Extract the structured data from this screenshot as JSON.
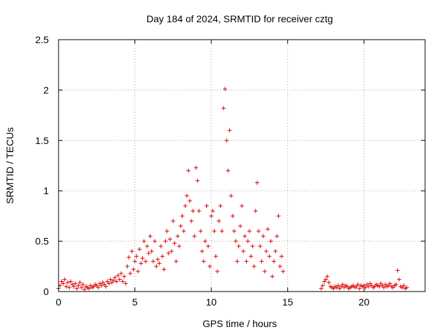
{
  "chart_data": {
    "type": "scatter",
    "title": "Day 184 of 2024, SRMTID for receiver cztg",
    "xlabel": "GPS time / hours",
    "ylabel": "SRMTID / TECUs",
    "xlim": [
      0,
      24
    ],
    "ylim": [
      0,
      2.5
    ],
    "xticks": [
      0,
      5,
      10,
      15,
      20
    ],
    "yticks": [
      0,
      0.5,
      1,
      1.5,
      2,
      2.5
    ],
    "grid": true,
    "marker": "plus",
    "color": "#e00000",
    "series": [
      {
        "name": "SRMTID",
        "x": [
          0.0,
          0.1,
          0.2,
          0.3,
          0.4,
          0.5,
          0.6,
          0.7,
          0.8,
          0.9,
          1.0,
          1.1,
          1.2,
          1.3,
          1.4,
          1.5,
          1.6,
          1.7,
          1.8,
          1.9,
          2.0,
          2.1,
          2.2,
          2.3,
          2.4,
          2.5,
          2.6,
          2.7,
          2.8,
          2.9,
          3.0,
          3.1,
          3.2,
          3.3,
          3.4,
          3.5,
          3.6,
          3.7,
          3.8,
          3.9,
          4.0,
          4.1,
          4.2,
          4.3,
          4.4,
          4.5,
          4.6,
          4.7,
          4.8,
          4.9,
          5.0,
          5.1,
          5.2,
          5.3,
          5.4,
          5.5,
          5.6,
          5.7,
          5.8,
          5.9,
          6.0,
          6.1,
          6.2,
          6.3,
          6.4,
          6.5,
          6.6,
          6.7,
          6.8,
          6.9,
          7.0,
          7.1,
          7.2,
          7.3,
          7.4,
          7.5,
          7.6,
          7.7,
          7.8,
          7.9,
          8.0,
          8.1,
          8.2,
          8.3,
          8.4,
          8.5,
          8.6,
          8.7,
          8.8,
          8.9,
          9.0,
          9.1,
          9.2,
          9.3,
          9.4,
          9.5,
          9.6,
          9.7,
          9.8,
          9.9,
          10.0,
          10.1,
          10.2,
          10.3,
          10.4,
          10.5,
          10.6,
          10.7,
          10.8,
          10.9,
          11.0,
          11.1,
          11.2,
          11.3,
          11.4,
          11.5,
          11.6,
          11.7,
          11.8,
          11.9,
          12.0,
          12.1,
          12.2,
          12.3,
          12.4,
          12.5,
          12.6,
          12.7,
          12.8,
          12.9,
          13.0,
          13.1,
          13.2,
          13.3,
          13.4,
          13.5,
          13.6,
          13.7,
          13.8,
          13.9,
          14.0,
          14.1,
          14.2,
          14.3,
          14.4,
          14.5,
          14.6,
          14.7,
          17.2,
          17.3,
          17.4,
          17.5,
          17.6,
          17.7,
          17.8,
          17.9,
          18.0,
          18.1,
          18.2,
          18.3,
          18.4,
          18.5,
          18.6,
          18.7,
          18.8,
          18.9,
          19.0,
          19.1,
          19.2,
          19.3,
          19.4,
          19.5,
          19.6,
          19.7,
          19.8,
          19.9,
          20.0,
          20.1,
          20.2,
          20.3,
          20.4,
          20.5,
          20.6,
          20.7,
          20.8,
          20.9,
          21.0,
          21.1,
          21.2,
          21.3,
          21.4,
          21.5,
          21.6,
          21.7,
          21.8,
          21.9,
          22.0,
          22.1,
          22.2,
          22.3,
          22.4,
          22.5,
          22.6,
          22.7,
          22.8
        ],
        "y": [
          0.03,
          0.06,
          0.1,
          0.08,
          0.12,
          0.05,
          0.09,
          0.04,
          0.1,
          0.07,
          0.05,
          0.08,
          0.03,
          0.06,
          0.09,
          0.04,
          0.07,
          0.02,
          0.05,
          0.04,
          0.03,
          0.06,
          0.04,
          0.05,
          0.07,
          0.06,
          0.04,
          0.08,
          0.06,
          0.09,
          0.07,
          0.05,
          0.1,
          0.08,
          0.12,
          0.09,
          0.11,
          0.14,
          0.1,
          0.16,
          0.12,
          0.18,
          0.1,
          0.15,
          0.08,
          0.25,
          0.34,
          0.18,
          0.4,
          0.22,
          0.3,
          0.35,
          0.2,
          0.42,
          0.28,
          0.33,
          0.5,
          0.3,
          0.45,
          0.38,
          0.55,
          0.4,
          0.3,
          0.5,
          0.25,
          0.32,
          0.28,
          0.45,
          0.35,
          0.22,
          0.5,
          0.6,
          0.38,
          0.52,
          0.4,
          0.7,
          0.48,
          0.3,
          0.55,
          0.45,
          0.65,
          0.75,
          0.6,
          0.85,
          0.95,
          1.2,
          0.9,
          0.7,
          0.8,
          0.55,
          1.23,
          1.1,
          0.8,
          0.6,
          0.4,
          0.3,
          0.5,
          0.85,
          0.45,
          0.25,
          0.75,
          0.8,
          0.6,
          0.35,
          0.2,
          0.7,
          0.85,
          0.6,
          1.82,
          2.01,
          1.5,
          1.2,
          1.6,
          0.95,
          0.75,
          0.6,
          0.5,
          0.3,
          0.45,
          0.65,
          0.85,
          0.4,
          0.55,
          0.3,
          0.5,
          0.6,
          0.35,
          0.45,
          0.25,
          0.8,
          1.08,
          0.6,
          0.45,
          0.3,
          0.55,
          0.2,
          0.4,
          0.62,
          0.35,
          0.5,
          0.15,
          0.3,
          0.4,
          0.55,
          0.75,
          0.25,
          0.35,
          0.2,
          0.03,
          0.06,
          0.1,
          0.12,
          0.15,
          0.09,
          0.05,
          0.04,
          0.03,
          0.05,
          0.04,
          0.06,
          0.03,
          0.05,
          0.07,
          0.04,
          0.06,
          0.05,
          0.03,
          0.04,
          0.05,
          0.06,
          0.04,
          0.05,
          0.07,
          0.03,
          0.06,
          0.05,
          0.06,
          0.04,
          0.07,
          0.05,
          0.08,
          0.06,
          0.04,
          0.05,
          0.07,
          0.06,
          0.05,
          0.08,
          0.06,
          0.04,
          0.07,
          0.05,
          0.06,
          0.08,
          0.05,
          0.04,
          0.06,
          0.07,
          0.21,
          0.12,
          0.05,
          0.04,
          0.06,
          0.03,
          0.04
        ]
      }
    ]
  }
}
